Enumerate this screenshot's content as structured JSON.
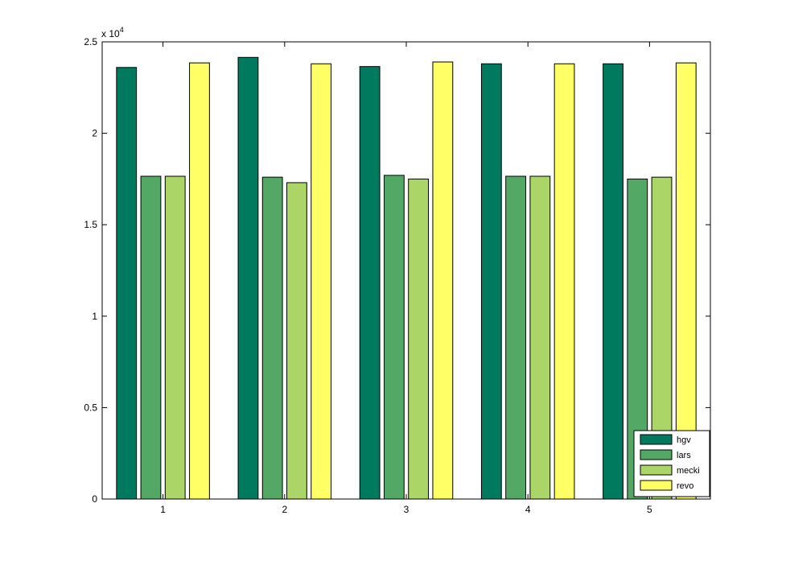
{
  "chart_data": {
    "type": "bar",
    "categories": [
      "1",
      "2",
      "3",
      "4",
      "5"
    ],
    "series": [
      {
        "name": "hgv",
        "color": "#007A5E",
        "values": [
          23600,
          24150,
          23650,
          23800,
          23800
        ]
      },
      {
        "name": "lars",
        "color": "#53A865",
        "values": [
          17650,
          17600,
          17700,
          17650,
          17500
        ]
      },
      {
        "name": "mecki",
        "color": "#ABD566",
        "values": [
          17650,
          17300,
          17500,
          17650,
          17600
        ]
      },
      {
        "name": "revo",
        "color": "#FFFF66",
        "values": [
          23850,
          23800,
          23900,
          23800,
          23850
        ]
      }
    ],
    "title": "",
    "xlabel": "",
    "ylabel": "",
    "ylim": [
      0,
      25000
    ],
    "ytick_labels": [
      "0",
      "0.5",
      "1",
      "1.5",
      "2",
      "2.5"
    ],
    "ytick_values": [
      0,
      5000,
      10000,
      15000,
      20000,
      25000
    ],
    "y_exponent_label": {
      "base": "x 10",
      "exponent": "4"
    },
    "legend_position": "bottom-right",
    "grid": false
  }
}
